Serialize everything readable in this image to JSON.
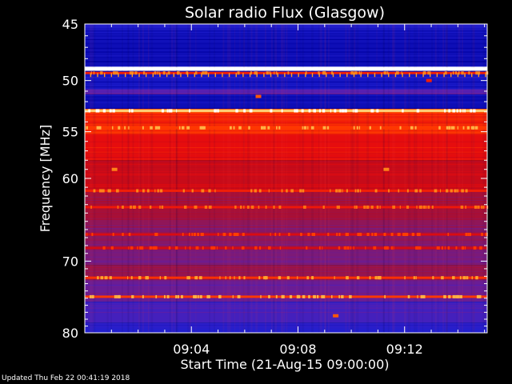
{
  "chart_data": {
    "type": "heatmap",
    "title": "Solar radio Flux (Glasgow)",
    "xlabel": "Start Time (21-Aug-15 09:00:00)",
    "ylabel": "Frequency [MHz]",
    "x_unit": "minutes after 09:00:00",
    "xlim": [
      0,
      15.1
    ],
    "ylim": [
      45,
      80
    ],
    "y_scale": "log",
    "x_ticks": [
      {
        "value": 4,
        "label": "09:04"
      },
      {
        "value": 8,
        "label": "09:08"
      },
      {
        "value": 12,
        "label": "09:12"
      }
    ],
    "y_ticks": [
      {
        "value": 45,
        "label": "45"
      },
      {
        "value": 50,
        "label": "50"
      },
      {
        "value": 55,
        "label": "55"
      },
      {
        "value": 60,
        "label": "60"
      },
      {
        "value": 70,
        "label": "70"
      },
      {
        "value": 80,
        "label": "80"
      }
    ],
    "colormap": [
      "#0000a0",
      "#1f1fd0",
      "#5a20b0",
      "#8a1860",
      "#b80a1e",
      "#e80d0d",
      "#ff3b00",
      "#ff9a20",
      "#ffe8a0",
      "#ffffff"
    ],
    "frequency_bands": [
      {
        "f0": 45.0,
        "f1": 45.5,
        "level": 0.12
      },
      {
        "f0": 45.5,
        "f1": 48.7,
        "level": 0.05
      },
      {
        "f0": 48.7,
        "f1": 49.1,
        "level": 1.0
      },
      {
        "f0": 49.1,
        "f1": 50.8,
        "level": 0.08
      },
      {
        "f0": 50.8,
        "f1": 51.3,
        "level": 0.22
      },
      {
        "f0": 51.3,
        "f1": 52.7,
        "level": 0.05
      },
      {
        "f0": 52.7,
        "f1": 53.1,
        "level": 0.7
      },
      {
        "f0": 53.1,
        "f1": 54.2,
        "level": 0.6
      },
      {
        "f0": 54.2,
        "f1": 55.2,
        "level": 0.65
      },
      {
        "f0": 55.2,
        "f1": 58.0,
        "level": 0.55
      },
      {
        "f0": 58.0,
        "f1": 61.5,
        "level": 0.48
      },
      {
        "f0": 61.5,
        "f1": 64.5,
        "level": 0.4
      },
      {
        "f0": 64.5,
        "f1": 67.5,
        "level": 0.34
      },
      {
        "f0": 67.5,
        "f1": 70.5,
        "level": 0.3
      },
      {
        "f0": 70.5,
        "f1": 72.5,
        "level": 0.36
      },
      {
        "f0": 72.5,
        "f1": 75.5,
        "level": 0.26
      },
      {
        "f0": 75.5,
        "f1": 78.5,
        "level": 0.18
      },
      {
        "f0": 78.5,
        "f1": 80.0,
        "level": 0.12
      }
    ],
    "bright_lines": [
      {
        "f": 48.9,
        "level": 1.0
      },
      {
        "f": 49.3,
        "level": 0.6
      },
      {
        "f": 52.9,
        "level": 0.85
      },
      {
        "f": 54.6,
        "level": 0.66
      },
      {
        "f": 61.4,
        "level": 0.6
      },
      {
        "f": 63.3,
        "level": 0.58
      },
      {
        "f": 66.6,
        "level": 0.52
      },
      {
        "f": 68.3,
        "level": 0.5
      },
      {
        "f": 72.2,
        "level": 0.64
      },
      {
        "f": 74.8,
        "level": 0.66
      }
    ],
    "spots": [
      {
        "t": 1.1,
        "f": 59.0,
        "level": 0.75
      },
      {
        "t": 11.3,
        "f": 59.0,
        "level": 0.75
      },
      {
        "t": 6.5,
        "f": 51.5,
        "level": 0.7
      },
      {
        "t": 9.4,
        "f": 77.5,
        "level": 0.7
      },
      {
        "t": 12.9,
        "f": 50.0,
        "level": 0.6
      }
    ]
  },
  "footer": "Updated Thu Feb 22 00:41:19 2018"
}
